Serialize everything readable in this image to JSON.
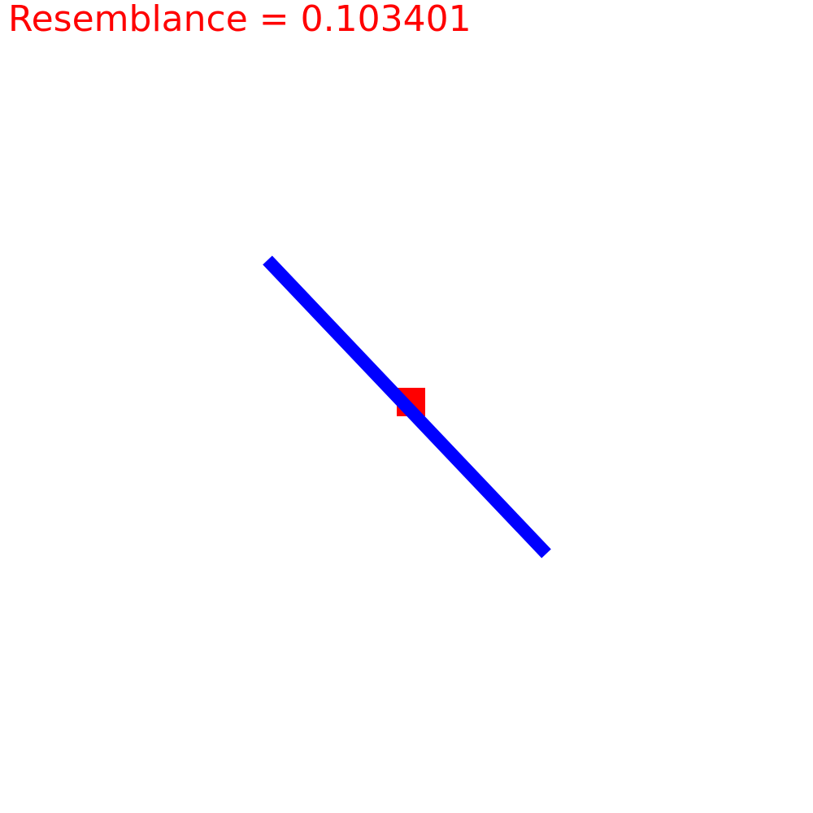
{
  "hud": {
    "label": "Resemblance",
    "separator": " = ",
    "value": "0.103401"
  },
  "colors": {
    "text": "#ff0000",
    "target_square": "#ff0000",
    "line": "#0000ff",
    "background": "#ffffff"
  }
}
